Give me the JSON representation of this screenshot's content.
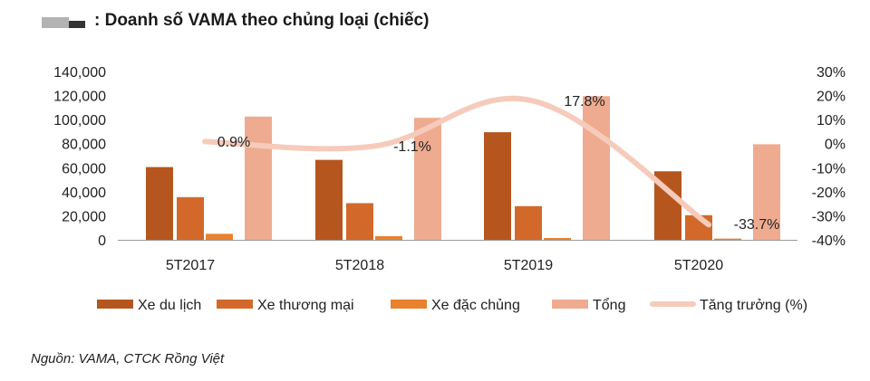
{
  "title": ": Doanh số VAMA theo chủng loại (chiếc)",
  "source": "Nguồn: VAMA, CTCK Rồng Việt",
  "colors": {
    "xe_du_lich": "#b5561f",
    "xe_thuong_mai": "#d2692a",
    "xe_dac_chung": "#e8822f",
    "tong": "#efab90",
    "tang_truong": "#f6cbbb"
  },
  "chart_data": {
    "type": "bar",
    "categories": [
      "5T2017",
      "5T2018",
      "5T2019",
      "5T2020"
    ],
    "series": [
      {
        "name": "Xe du lịch",
        "values": [
          60500,
          66500,
          89500,
          57000
        ]
      },
      {
        "name": "Xe thương mại",
        "values": [
          35500,
          30500,
          28000,
          20500
        ]
      },
      {
        "name": "Xe đặc chủng",
        "values": [
          5000,
          3000,
          1500,
          1000
        ]
      },
      {
        "name": "Tổng",
        "values": [
          102500,
          101500,
          119500,
          79500
        ]
      }
    ],
    "line_series": {
      "name": "Tăng trưởng (%)",
      "values": [
        0.9,
        -1.1,
        17.8,
        -33.7
      ],
      "labels": [
        "0.9%",
        "-1.1%",
        "17.8%",
        "-33.7%"
      ]
    },
    "y_left": {
      "min": 0,
      "max": 140000,
      "ticks": [
        "0",
        "20,000",
        "40,000",
        "60,000",
        "80,000",
        "100,000",
        "120,000",
        "140,000"
      ]
    },
    "y_right": {
      "min": -40,
      "max": 30,
      "ticks": [
        "-40%",
        "-30%",
        "-20%",
        "-10%",
        "0%",
        "10%",
        "20%",
        "30%"
      ]
    },
    "legend_position": "bottom",
    "grid": false
  }
}
